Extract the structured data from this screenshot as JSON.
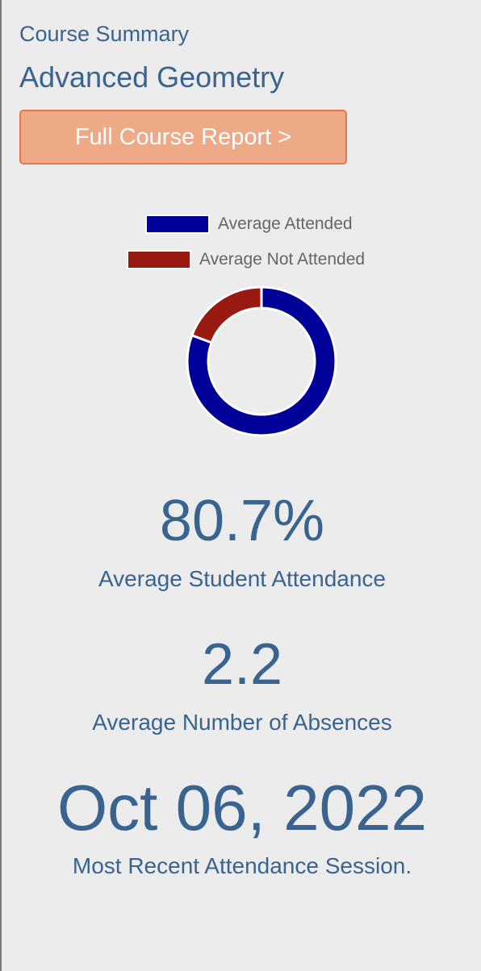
{
  "header": {
    "label": "Course Summary",
    "course_name": "Advanced Geometry"
  },
  "report_button": {
    "label": "Full Course Report >"
  },
  "chart_data": {
    "type": "pie",
    "style": "donut",
    "categories": [
      "Average Attended",
      "Average Not Attended"
    ],
    "values": [
      80.7,
      19.3
    ],
    "colors": [
      "#000099",
      "#991a10"
    ],
    "legend": [
      "Average Attended",
      "Average Not Attended"
    ],
    "legend_position": "top"
  },
  "stats": {
    "attendance_value": "80.7%",
    "attendance_label": "Average Student Attendance",
    "absences_value": "2.2",
    "absences_label": "Average Number of Absences",
    "recent_session_value": "Oct 06, 2022",
    "recent_session_label": "Most Recent Attendance Session."
  }
}
